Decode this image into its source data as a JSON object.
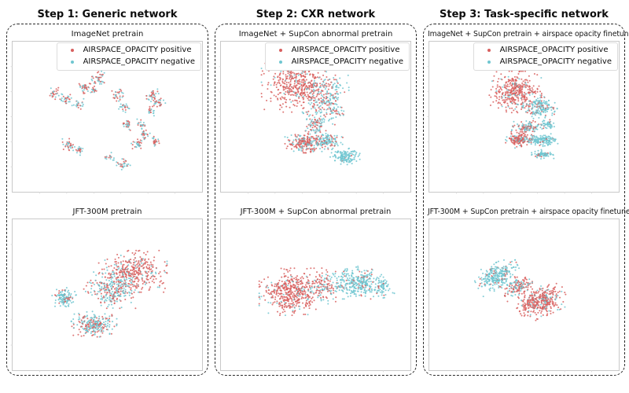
{
  "figure": {
    "columns": [
      {
        "header": "Step 1: Generic network"
      },
      {
        "header": "Step 2: CXR network"
      },
      {
        "header": "Step 3: Task-specific network"
      }
    ]
  },
  "legend": {
    "items": [
      {
        "label": "AIRSPACE_OPACITY positive",
        "color": "#d85f5e"
      },
      {
        "label": "AIRSPACE_OPACITY negative",
        "color": "#6fc6d0"
      }
    ]
  },
  "chart_meta": {
    "cluster_format": [
      "cx_frac",
      "cy_frac",
      "rx_frac",
      "ry_frac",
      "n_points",
      "positive_fraction",
      "rotation_deg"
    ],
    "marker": "point",
    "axes": {
      "tick_labels": false,
      "grid": false,
      "frame_color": "#c9c9c9"
    }
  },
  "chart_data": [
    {
      "type": "scatter",
      "title": "ImageNet pretrain",
      "step": "Step 1: Generic network",
      "xlabel": "",
      "ylabel": "",
      "legend_visible": true,
      "series": [
        {
          "name": "AIRSPACE_OPACITY positive",
          "color": "#d85f5e"
        },
        {
          "name": "AIRSPACE_OPACITY negative",
          "color": "#6fc6d0"
        }
      ],
      "seed": 11,
      "clusters": [
        [
          0.29,
          0.095,
          0.03,
          0.035,
          30,
          0.45,
          0
        ],
        [
          0.455,
          0.245,
          0.035,
          0.04,
          40,
          0.55,
          0
        ],
        [
          0.375,
          0.305,
          0.03,
          0.035,
          32,
          0.5,
          0
        ],
        [
          0.225,
          0.345,
          0.028,
          0.032,
          26,
          0.5,
          0
        ],
        [
          0.285,
          0.385,
          0.03,
          0.03,
          28,
          0.5,
          0
        ],
        [
          0.345,
          0.415,
          0.026,
          0.028,
          22,
          0.45,
          0
        ],
        [
          0.43,
          0.325,
          0.022,
          0.026,
          16,
          0.5,
          0
        ],
        [
          0.555,
          0.355,
          0.03,
          0.034,
          30,
          0.5,
          0
        ],
        [
          0.585,
          0.435,
          0.026,
          0.03,
          22,
          0.45,
          0
        ],
        [
          0.735,
          0.355,
          0.03,
          0.036,
          34,
          0.5,
          0
        ],
        [
          0.775,
          0.405,
          0.026,
          0.03,
          24,
          0.5,
          0
        ],
        [
          0.73,
          0.46,
          0.024,
          0.028,
          20,
          0.5,
          0
        ],
        [
          0.6,
          0.555,
          0.028,
          0.032,
          26,
          0.5,
          0
        ],
        [
          0.675,
          0.55,
          0.024,
          0.028,
          20,
          0.55,
          0
        ],
        [
          0.7,
          0.625,
          0.026,
          0.03,
          24,
          0.5,
          0
        ],
        [
          0.655,
          0.68,
          0.03,
          0.034,
          30,
          0.5,
          0
        ],
        [
          0.755,
          0.665,
          0.026,
          0.03,
          24,
          0.45,
          0
        ],
        [
          0.3,
          0.69,
          0.032,
          0.036,
          34,
          0.5,
          0
        ],
        [
          0.35,
          0.72,
          0.026,
          0.03,
          22,
          0.5,
          0
        ],
        [
          0.585,
          0.815,
          0.03,
          0.034,
          30,
          0.5,
          0
        ],
        [
          0.515,
          0.77,
          0.022,
          0.026,
          16,
          0.5,
          0
        ]
      ]
    },
    {
      "type": "scatter",
      "title": "ImageNet + SupCon abnormal pretrain",
      "step": "Step 2: CXR network",
      "xlabel": "",
      "ylabel": "",
      "legend_visible": true,
      "series": [
        {
          "name": "AIRSPACE_OPACITY positive",
          "color": "#d85f5e"
        },
        {
          "name": "AIRSPACE_OPACITY negative",
          "color": "#6fc6d0"
        }
      ],
      "seed": 22,
      "clusters": [
        [
          0.4,
          0.295,
          0.155,
          0.145,
          430,
          0.9,
          0
        ],
        [
          0.555,
          0.38,
          0.1,
          0.15,
          250,
          0.35,
          0
        ],
        [
          0.5,
          0.555,
          0.045,
          0.075,
          85,
          0.5,
          0
        ],
        [
          0.44,
          0.675,
          0.085,
          0.055,
          210,
          0.7,
          0
        ],
        [
          0.565,
          0.66,
          0.065,
          0.05,
          130,
          0.22,
          0
        ],
        [
          0.655,
          0.765,
          0.065,
          0.045,
          140,
          0.06,
          0
        ]
      ]
    },
    {
      "type": "scatter",
      "title": "ImageNet + SupCon pretrain + airspace opacity finetune",
      "step": "Step 3: Task-specific network",
      "xlabel": "",
      "ylabel": "",
      "legend_visible": true,
      "series": [
        {
          "name": "AIRSPACE_OPACITY positive",
          "color": "#d85f5e"
        },
        {
          "name": "AIRSPACE_OPACITY negative",
          "color": "#6fc6d0"
        }
      ],
      "seed": 33,
      "clusters": [
        [
          0.455,
          0.335,
          0.115,
          0.115,
          400,
          0.88,
          0
        ],
        [
          0.585,
          0.44,
          0.075,
          0.06,
          170,
          0.18,
          0
        ],
        [
          0.515,
          0.57,
          0.075,
          0.035,
          120,
          0.45,
          0
        ],
        [
          0.625,
          0.55,
          0.035,
          0.03,
          45,
          0.1,
          0
        ],
        [
          0.475,
          0.655,
          0.06,
          0.045,
          160,
          0.82,
          0
        ],
        [
          0.6,
          0.655,
          0.08,
          0.035,
          150,
          0.12,
          0
        ],
        [
          0.6,
          0.75,
          0.05,
          0.025,
          75,
          0.1,
          0
        ]
      ]
    },
    {
      "type": "scatter",
      "title": "JFT-300M pretrain",
      "step": "Step 1: Generic network",
      "xlabel": "",
      "ylabel": "",
      "legend_visible": false,
      "series": [
        {
          "name": "AIRSPACE_OPACITY positive",
          "color": "#d85f5e"
        },
        {
          "name": "AIRSPACE_OPACITY negative",
          "color": "#6fc6d0"
        }
      ],
      "seed": 44,
      "clusters": [
        [
          0.635,
          0.345,
          0.15,
          0.115,
          370,
          0.78,
          0
        ],
        [
          0.52,
          0.47,
          0.12,
          0.1,
          270,
          0.42,
          0
        ],
        [
          0.27,
          0.52,
          0.055,
          0.055,
          120,
          0.2,
          0
        ],
        [
          0.43,
          0.695,
          0.1,
          0.07,
          250,
          0.38,
          0
        ]
      ]
    },
    {
      "type": "scatter",
      "title": "JFT-300M + SupCon abnormal pretrain",
      "step": "Step 2: CXR network",
      "xlabel": "",
      "ylabel": "",
      "legend_visible": false,
      "series": [
        {
          "name": "AIRSPACE_OPACITY positive",
          "color": "#d85f5e"
        },
        {
          "name": "AIRSPACE_OPACITY negative",
          "color": "#6fc6d0"
        }
      ],
      "seed": 55,
      "clusters": [
        [
          0.37,
          0.48,
          0.14,
          0.13,
          460,
          0.88,
          0
        ],
        [
          0.55,
          0.44,
          0.08,
          0.1,
          140,
          0.55,
          0
        ],
        [
          0.72,
          0.42,
          0.115,
          0.09,
          320,
          0.1,
          0
        ],
        [
          0.855,
          0.45,
          0.05,
          0.06,
          60,
          0.05,
          0
        ]
      ]
    },
    {
      "type": "scatter",
      "title": "JFT-300M + SupCon pretrain + airspace opacity finetune",
      "step": "Step 3: Task-specific network",
      "xlabel": "",
      "ylabel": "",
      "legend_visible": false,
      "series": [
        {
          "name": "AIRSPACE_OPACITY positive",
          "color": "#d85f5e"
        },
        {
          "name": "AIRSPACE_OPACITY negative",
          "color": "#6fc6d0"
        }
      ],
      "seed": 66,
      "clusters": [
        [
          0.36,
          0.375,
          0.1,
          0.07,
          270,
          0.08,
          -25
        ],
        [
          0.47,
          0.45,
          0.07,
          0.06,
          150,
          0.5,
          -25
        ],
        [
          0.585,
          0.545,
          0.115,
          0.085,
          370,
          0.85,
          -25
        ]
      ]
    }
  ]
}
